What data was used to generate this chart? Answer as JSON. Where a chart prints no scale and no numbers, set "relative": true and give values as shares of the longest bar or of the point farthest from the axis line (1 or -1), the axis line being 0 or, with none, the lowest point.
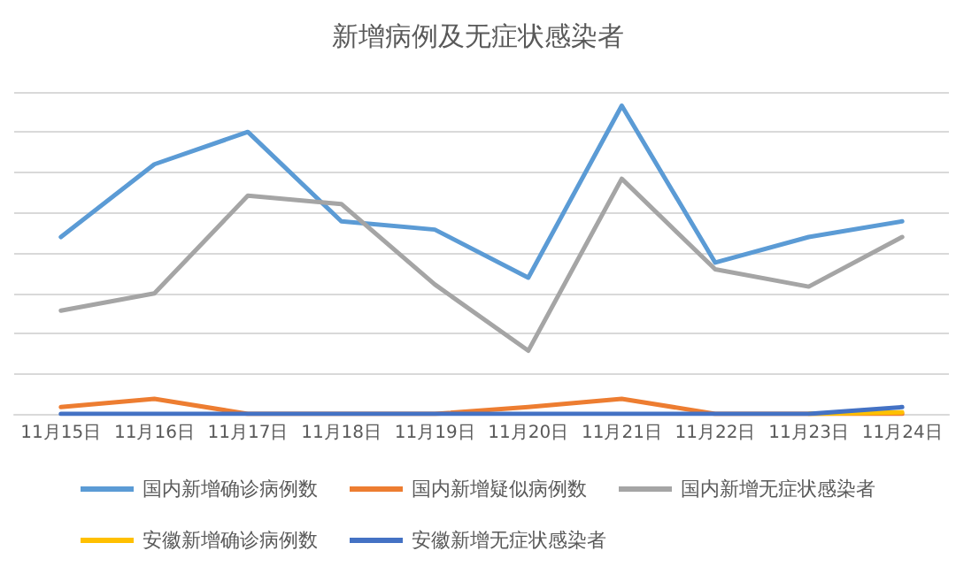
{
  "chart_data": {
    "type": "line",
    "title": "新增病例及无症状感染者",
    "relative": true,
    "grid": "y",
    "legend": "bottom",
    "marker": "none",
    "line_style": "solid",
    "categories": [
      "11月15日",
      "11月16日",
      "11月17日",
      "11月18日",
      "11月19日",
      "11月20日",
      "11月21日",
      "11月22日",
      "11月23日",
      "11月24日"
    ],
    "series": [
      {
        "name": "国内新增确诊病例数",
        "color": "#5b9bd5",
        "values": [
          0.574,
          0.81,
          0.915,
          0.625,
          0.598,
          0.442,
          1,
          0.491,
          0.574,
          0.625
        ]
      },
      {
        "name": "国内新增疑似病例数",
        "color": "#ed7d31",
        "values": [
          0.022,
          0.049,
          0,
          0,
          0,
          0.022,
          0.049,
          0,
          0,
          0
        ]
      },
      {
        "name": "国内新增无症状感染者",
        "color": "#a5a5a5",
        "values": [
          0.335,
          0.391,
          0.708,
          0.681,
          0.42,
          0.205,
          0.763,
          0.469,
          0.413,
          0.574
        ]
      },
      {
        "name": "安徽新增确诊病例数",
        "color": "#ffc000",
        "values": [
          null,
          null,
          null,
          null,
          null,
          null,
          null,
          null,
          0,
          0.005
        ]
      },
      {
        "name": "安徽新增无症状感染者",
        "color": "#4472c4",
        "values": [
          0,
          0,
          0,
          0,
          0,
          0,
          0,
          0,
          0,
          0.022
        ]
      }
    ]
  }
}
